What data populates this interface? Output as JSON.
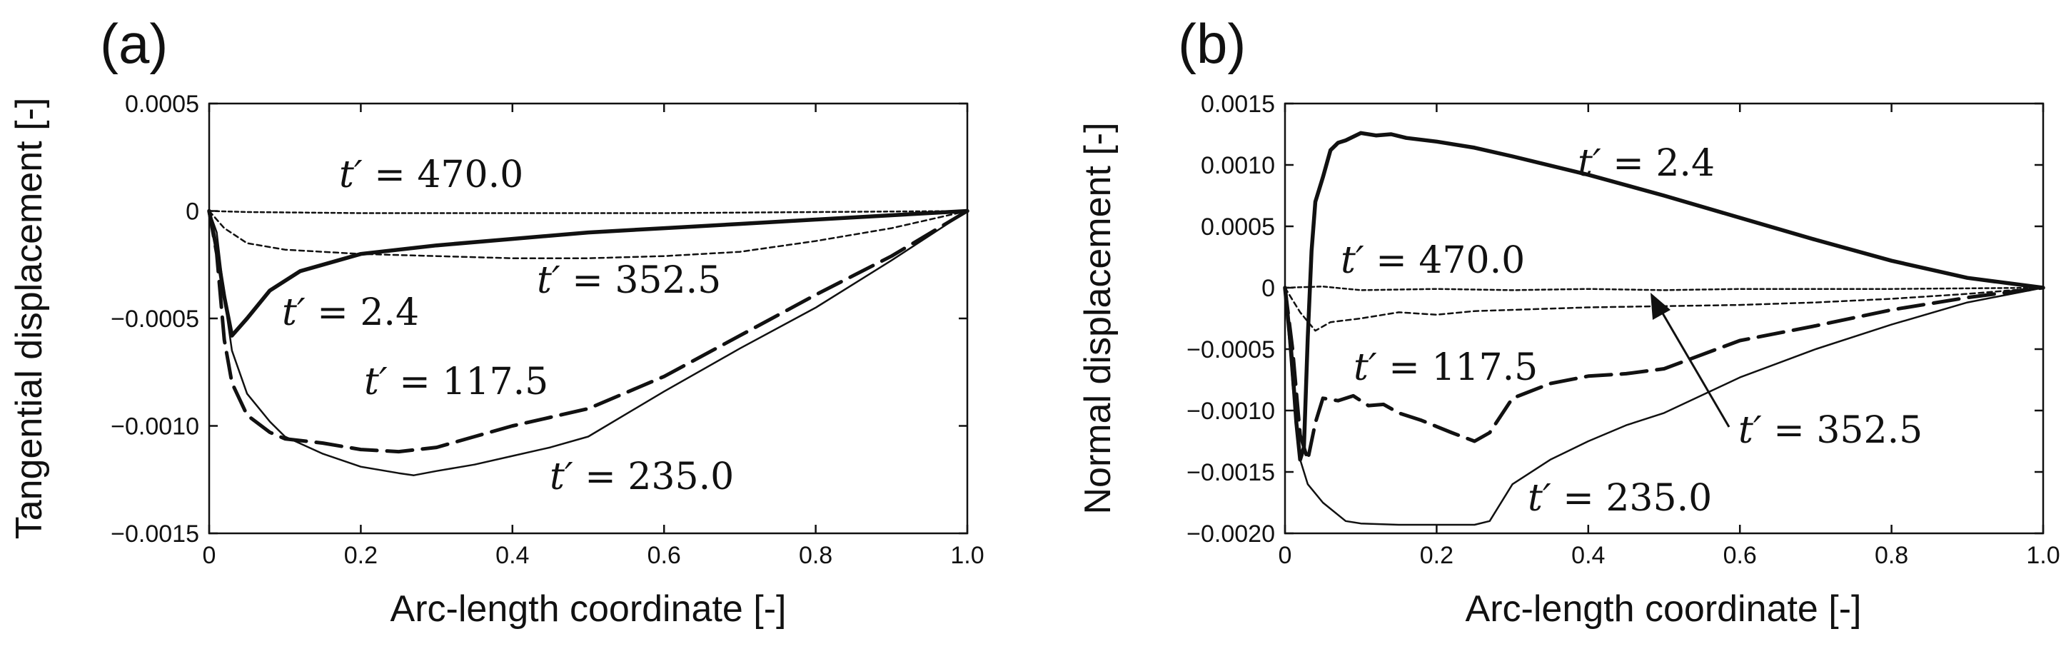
{
  "chart_data": [
    {
      "type": "line",
      "panel_label": "(a)",
      "xlabel": "Arc-length coordinate [-]",
      "ylabel": "Tangential displacement [-]",
      "xlim": [
        0,
        1.0
      ],
      "ylim": [
        -0.0015,
        0.0005
      ],
      "x_ticks": [
        0,
        0.2,
        0.4,
        0.6,
        0.8,
        1.0
      ],
      "x_tick_labels": [
        "0",
        "0.2",
        "0.4",
        "0.6",
        "0.8",
        "1.0"
      ],
      "y_ticks": [
        0.0005,
        0,
        -0.0005,
        -0.001,
        -0.0015
      ],
      "y_tick_labels": [
        "0.0005",
        "0",
        "−0.0005",
        "−0.0010",
        "−0.0015"
      ],
      "grid": false,
      "series": [
        {
          "name": "t′ = 2.4",
          "label_var": "t′",
          "label_val": " = 2.4",
          "style": "thick-solid",
          "points": [
            [
              0,
              0
            ],
            [
              0.01,
              -0.00018
            ],
            [
              0.02,
              -0.0004
            ],
            [
              0.03,
              -0.00058
            ],
            [
              0.05,
              -0.0005
            ],
            [
              0.08,
              -0.00037
            ],
            [
              0.12,
              -0.00028
            ],
            [
              0.2,
              -0.0002
            ],
            [
              0.3,
              -0.00016
            ],
            [
              0.4,
              -0.00013
            ],
            [
              0.5,
              -0.0001
            ],
            [
              0.6,
              -8e-05
            ],
            [
              0.7,
              -6e-05
            ],
            [
              0.8,
              -4e-05
            ],
            [
              0.9,
              -2e-05
            ],
            [
              1.0,
              0
            ]
          ]
        },
        {
          "name": "t′ = 117.5",
          "label_var": "t′",
          "label_val": " = 117.5",
          "style": "long-dash",
          "points": [
            [
              0,
              0
            ],
            [
              0.01,
              -0.0002
            ],
            [
              0.02,
              -0.0006
            ],
            [
              0.03,
              -0.0008
            ],
            [
              0.05,
              -0.00095
            ],
            [
              0.08,
              -0.00103
            ],
            [
              0.1,
              -0.00106
            ],
            [
              0.15,
              -0.00108
            ],
            [
              0.2,
              -0.00111
            ],
            [
              0.25,
              -0.00112
            ],
            [
              0.3,
              -0.0011
            ],
            [
              0.35,
              -0.00105
            ],
            [
              0.4,
              -0.001
            ],
            [
              0.45,
              -0.00096
            ],
            [
              0.5,
              -0.00092
            ],
            [
              0.6,
              -0.00077
            ],
            [
              0.7,
              -0.00058
            ],
            [
              0.8,
              -0.00039
            ],
            [
              0.9,
              -0.00021
            ],
            [
              1.0,
              0
            ]
          ]
        },
        {
          "name": "t′ = 235.0",
          "label_var": "t′",
          "label_val": " = 235.0",
          "style": "thin-solid",
          "points": [
            [
              0,
              0
            ],
            [
              0.01,
              -0.0001
            ],
            [
              0.02,
              -0.0004
            ],
            [
              0.03,
              -0.00065
            ],
            [
              0.05,
              -0.00085
            ],
            [
              0.08,
              -0.00098
            ],
            [
              0.1,
              -0.00105
            ],
            [
              0.15,
              -0.00113
            ],
            [
              0.2,
              -0.00119
            ],
            [
              0.25,
              -0.00122
            ],
            [
              0.27,
              -0.00123
            ],
            [
              0.3,
              -0.00121
            ],
            [
              0.35,
              -0.00118
            ],
            [
              0.4,
              -0.00114
            ],
            [
              0.45,
              -0.0011
            ],
            [
              0.5,
              -0.00105
            ],
            [
              0.6,
              -0.00084
            ],
            [
              0.7,
              -0.00064
            ],
            [
              0.8,
              -0.00045
            ],
            [
              0.9,
              -0.00023
            ],
            [
              1.0,
              0
            ]
          ]
        },
        {
          "name": "t′ = 352.5",
          "label_var": "t′",
          "label_val": " = 352.5",
          "style": "dotted",
          "points": [
            [
              0,
              0
            ],
            [
              0.02,
              -8e-05
            ],
            [
              0.05,
              -0.00015
            ],
            [
              0.1,
              -0.00018
            ],
            [
              0.2,
              -0.0002
            ],
            [
              0.3,
              -0.00021
            ],
            [
              0.4,
              -0.00022
            ],
            [
              0.5,
              -0.00022
            ],
            [
              0.6,
              -0.00021
            ],
            [
              0.7,
              -0.00019
            ],
            [
              0.8,
              -0.00014
            ],
            [
              0.9,
              -8e-05
            ],
            [
              1.0,
              0
            ]
          ]
        },
        {
          "name": "t′ = 470.0",
          "label_var": "t′",
          "label_val": " = 470.0",
          "style": "fine-dash",
          "points": [
            [
              0,
              0
            ],
            [
              0.05,
              -5e-06
            ],
            [
              0.2,
              -1e-05
            ],
            [
              0.4,
              -1e-05
            ],
            [
              0.6,
              -1e-05
            ],
            [
              0.8,
              -5e-06
            ],
            [
              1.0,
              0
            ]
          ]
        }
      ]
    },
    {
      "type": "line",
      "panel_label": "(b)",
      "xlabel": "Arc-length coordinate [-]",
      "ylabel": "Normal displacement [-]",
      "xlim": [
        0,
        1.0
      ],
      "ylim": [
        -0.002,
        0.0015
      ],
      "x_ticks": [
        0,
        0.2,
        0.4,
        0.6,
        0.8,
        1.0
      ],
      "x_tick_labels": [
        "0",
        "0.2",
        "0.4",
        "0.6",
        "0.8",
        "1.0"
      ],
      "y_ticks": [
        0.0015,
        0.001,
        0.0005,
        0,
        -0.0005,
        -0.001,
        -0.0015,
        -0.002
      ],
      "y_tick_labels": [
        "0.0015",
        "0.0010",
        "0.0005",
        "0",
        "−0.0005",
        "−0.0010",
        "−0.0015",
        "−0.0020"
      ],
      "grid": false,
      "series": [
        {
          "name": "t′ = 2.4",
          "label_var": "t′",
          "label_val": " = 2.4",
          "style": "thick-solid",
          "points": [
            [
              0,
              0
            ],
            [
              0.008,
              -0.0005
            ],
            [
              0.015,
              -0.0011
            ],
            [
              0.02,
              -0.0014
            ],
            [
              0.025,
              -0.0013
            ],
            [
              0.03,
              -0.0004
            ],
            [
              0.035,
              0.0003
            ],
            [
              0.04,
              0.0007
            ],
            [
              0.05,
              0.0009
            ],
            [
              0.06,
              0.00112
            ],
            [
              0.07,
              0.00118
            ],
            [
              0.08,
              0.0012
            ],
            [
              0.1,
              0.00126
            ],
            [
              0.12,
              0.00124
            ],
            [
              0.14,
              0.00125
            ],
            [
              0.16,
              0.00122
            ],
            [
              0.2,
              0.00119
            ],
            [
              0.25,
              0.00114
            ],
            [
              0.3,
              0.00107
            ],
            [
              0.4,
              0.00092
            ],
            [
              0.5,
              0.00075
            ],
            [
              0.6,
              0.00057
            ],
            [
              0.7,
              0.00039
            ],
            [
              0.8,
              0.00022
            ],
            [
              0.9,
              8e-05
            ],
            [
              1.0,
              0
            ]
          ]
        },
        {
          "name": "t′ = 117.5",
          "label_var": "t′",
          "label_val": " = 117.5",
          "style": "long-dash",
          "points": [
            [
              0,
              0
            ],
            [
              0.01,
              -0.0005
            ],
            [
              0.02,
              -0.0012
            ],
            [
              0.03,
              -0.0014
            ],
            [
              0.04,
              -0.0011
            ],
            [
              0.05,
              -0.0009
            ],
            [
              0.07,
              -0.00092
            ],
            [
              0.09,
              -0.00088
            ],
            [
              0.11,
              -0.00096
            ],
            [
              0.13,
              -0.00095
            ],
            [
              0.15,
              -0.00102
            ],
            [
              0.18,
              -0.00108
            ],
            [
              0.2,
              -0.00113
            ],
            [
              0.22,
              -0.00118
            ],
            [
              0.25,
              -0.00125
            ],
            [
              0.27,
              -0.00118
            ],
            [
              0.3,
              -0.0009
            ],
            [
              0.35,
              -0.00078
            ],
            [
              0.4,
              -0.00072
            ],
            [
              0.45,
              -0.0007
            ],
            [
              0.5,
              -0.00066
            ],
            [
              0.6,
              -0.00043
            ],
            [
              0.7,
              -0.00031
            ],
            [
              0.8,
              -0.00018
            ],
            [
              0.9,
              -8e-05
            ],
            [
              1.0,
              0
            ]
          ]
        },
        {
          "name": "t′ = 235.0",
          "label_var": "t′",
          "label_val": " = 235.0",
          "style": "thin-solid",
          "points": [
            [
              0,
              0
            ],
            [
              0.01,
              -0.0008
            ],
            [
              0.02,
              -0.0014
            ],
            [
              0.03,
              -0.0016
            ],
            [
              0.05,
              -0.00175
            ],
            [
              0.08,
              -0.0019
            ],
            [
              0.1,
              -0.00192
            ],
            [
              0.15,
              -0.00193
            ],
            [
              0.2,
              -0.00193
            ],
            [
              0.25,
              -0.00193
            ],
            [
              0.27,
              -0.0019
            ],
            [
              0.3,
              -0.0016
            ],
            [
              0.35,
              -0.0014
            ],
            [
              0.4,
              -0.00125
            ],
            [
              0.45,
              -0.00112
            ],
            [
              0.5,
              -0.00102
            ],
            [
              0.6,
              -0.00073
            ],
            [
              0.7,
              -0.0005
            ],
            [
              0.8,
              -0.0003
            ],
            [
              0.9,
              -0.00012
            ],
            [
              1.0,
              0
            ]
          ]
        },
        {
          "name": "t′ = 352.5",
          "label_var": "t′",
          "label_val": " = 352.5",
          "style": "dotted",
          "points": [
            [
              0,
              0
            ],
            [
              0.02,
              -0.0002
            ],
            [
              0.04,
              -0.00035
            ],
            [
              0.06,
              -0.00028
            ],
            [
              0.1,
              -0.00025
            ],
            [
              0.15,
              -0.0002
            ],
            [
              0.2,
              -0.00022
            ],
            [
              0.25,
              -0.00019
            ],
            [
              0.3,
              -0.00018
            ],
            [
              0.4,
              -0.00016
            ],
            [
              0.5,
              -0.00015
            ],
            [
              0.6,
              -0.00014
            ],
            [
              0.7,
              -0.00012
            ],
            [
              0.8,
              -9e-05
            ],
            [
              0.9,
              -5e-05
            ],
            [
              1.0,
              0
            ]
          ]
        },
        {
          "name": "t′ = 470.0",
          "label_var": "t′",
          "label_val": " = 470.0",
          "style": "fine-dash",
          "points": [
            [
              0,
              0
            ],
            [
              0.05,
              1e-05
            ],
            [
              0.1,
              -2e-05
            ],
            [
              0.2,
              -1e-05
            ],
            [
              0.3,
              -2e-05
            ],
            [
              0.4,
              -1e-05
            ],
            [
              0.5,
              -2e-05
            ],
            [
              0.6,
              -1e-05
            ],
            [
              0.8,
              -1e-05
            ],
            [
              1.0,
              0
            ]
          ]
        }
      ]
    }
  ]
}
